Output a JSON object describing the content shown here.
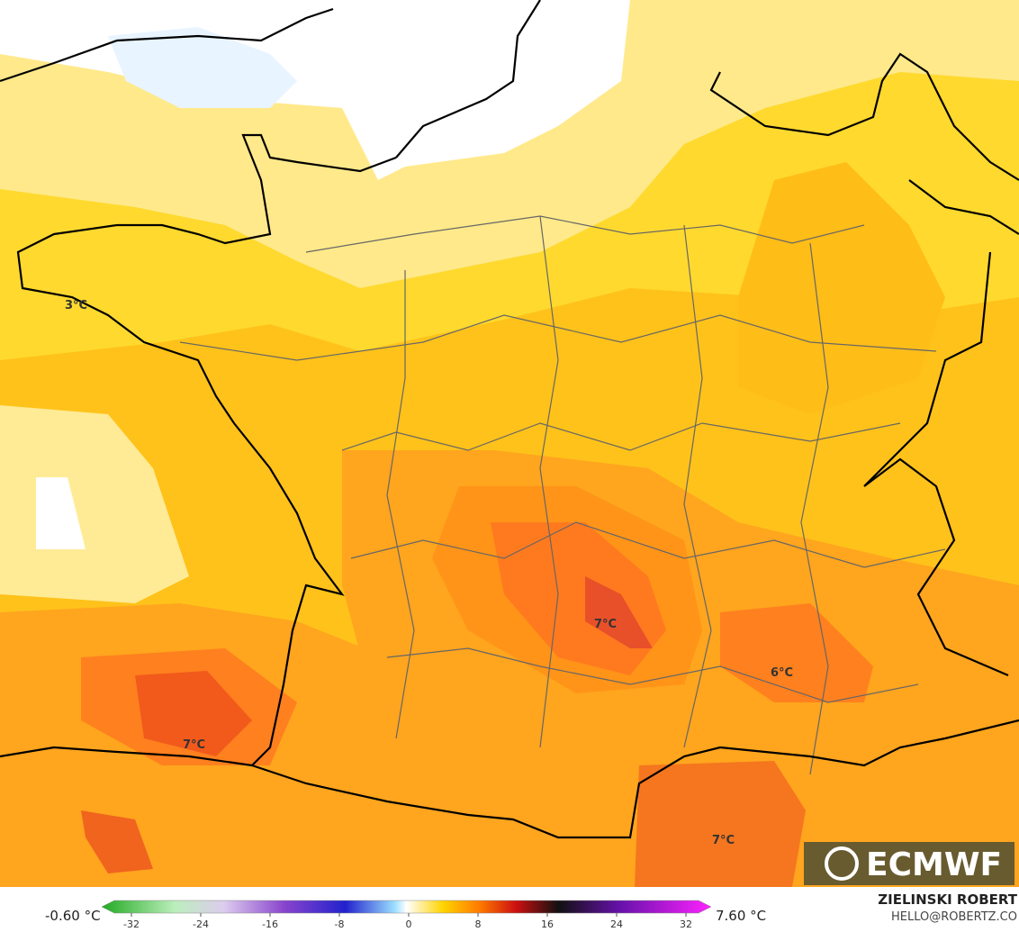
{
  "map": {
    "labels": [
      "3°C",
      "7°C",
      "7°C",
      "6°C",
      "7°C"
    ],
    "logo": "ECMWF",
    "legend": {
      "min_label": "-0.60 °C",
      "max_label": "7.60 °C",
      "ticks": [
        -32,
        -24,
        -16,
        -8,
        0,
        8,
        16,
        24,
        32
      ]
    },
    "author": "ZIELINSKI ROBERT",
    "contact": "HELLO@ROBERTZ.CO"
  }
}
